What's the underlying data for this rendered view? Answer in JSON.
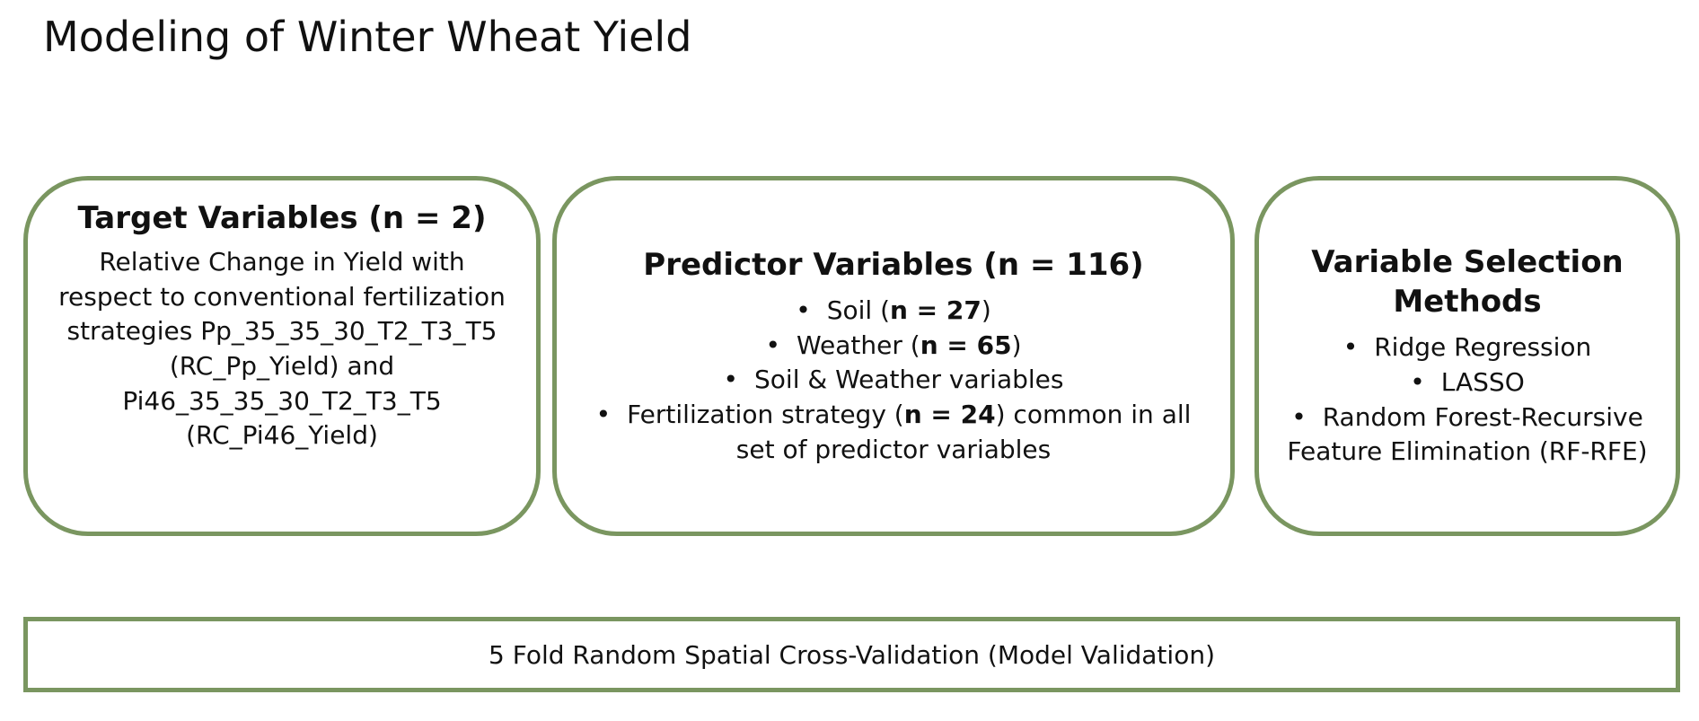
{
  "page": {
    "title": "Modeling of Winter Wheat Yield"
  },
  "target_box": {
    "title": "Target Variables (n = 2)",
    "description": "Relative Change in Yield with respect to conventional fertilization strategies Pp_35_35_30_T2_T3_T5 (RC_Pp_Yield) and Pi46_35_35_30_T2_T3_T5 (RC_Pi46_Yield)"
  },
  "predictor_box": {
    "title": "Predictor Variables (n = 116)",
    "items": [
      {
        "pre": "Soil (",
        "bold": "n = 27",
        "post": ")"
      },
      {
        "pre": "Weather (",
        "bold": "n = 65",
        "post": ")"
      },
      {
        "pre": "Soil & Weather variables",
        "bold": "",
        "post": ""
      },
      {
        "pre": "Fertilization strategy (",
        "bold": "n = 24",
        "post": ") common in all set of predictor variables"
      }
    ]
  },
  "methods_box": {
    "title": "Variable Selection Methods",
    "items": [
      "Ridge Regression",
      "LASSO",
      "Random Forest-Recursive Feature Elimination (RF-RFE)"
    ]
  },
  "validation_box": {
    "label": "5 Fold Random Spatial Cross-Validation (Model Validation)"
  },
  "colors": {
    "border": "#7a9660",
    "text": "#111111",
    "background": "#ffffff"
  },
  "icons": {
    "bullet": "bullet-dot-icon"
  }
}
